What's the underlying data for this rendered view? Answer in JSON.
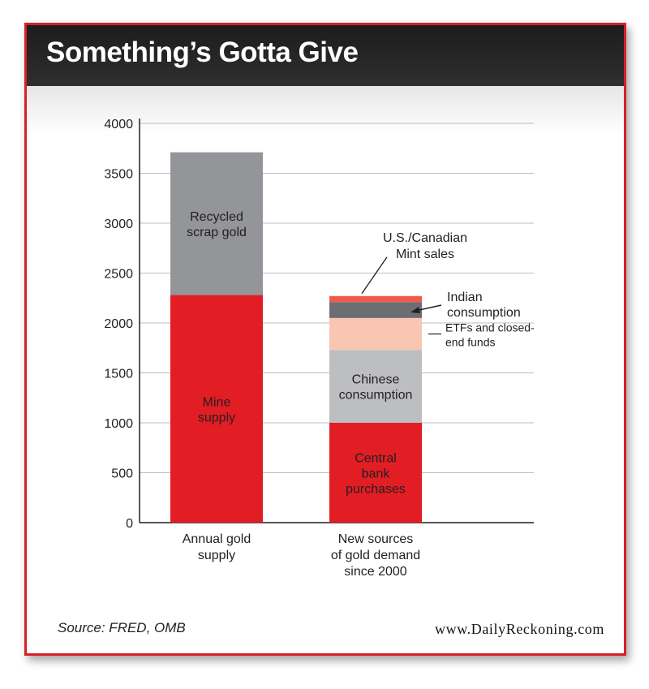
{
  "header": {
    "title": "Something’s Gotta Give"
  },
  "footer": {
    "source": "Source: FRED, OMB",
    "site": "www.DailyReckoning.com"
  },
  "colors": {
    "frame": "#d62027",
    "mine": "#e21d24",
    "recycled": "#939598",
    "central": "#e21d24",
    "chinese": "#bcbec0",
    "etf": "#f9c6b4",
    "indian": "#6d6e71",
    "mint": "#f15a4a"
  },
  "chart_data": {
    "type": "bar",
    "stacked": true,
    "title": "Something’s Gotta Give",
    "ylim": [
      0,
      4000
    ],
    "yticks": [
      0,
      500,
      1000,
      1500,
      2000,
      2500,
      3000,
      3500,
      4000
    ],
    "grid": true,
    "categories": [
      {
        "lines": [
          "Annual gold",
          "supply"
        ]
      },
      {
        "lines": [
          "New sources",
          "of gold demand",
          "since 2000"
        ]
      }
    ],
    "bars": [
      {
        "segments": [
          {
            "name": "Mine supply",
            "value": 2280,
            "color_key": "mine",
            "label_lines": [
              "Mine",
              "supply"
            ],
            "label_style": "inside-dark"
          },
          {
            "name": "Recycled scrap gold",
            "value": 1430,
            "color_key": "recycled",
            "label_lines": [
              "Recycled",
              "scrap gold"
            ],
            "label_style": "inside-dark"
          }
        ]
      },
      {
        "segments": [
          {
            "name": "Central bank purchases",
            "value": 1000,
            "color_key": "central",
            "label_lines": [
              "Central",
              "bank",
              "purchases"
            ],
            "label_style": "inside-dark"
          },
          {
            "name": "Chinese consumption",
            "value": 730,
            "color_key": "chinese",
            "label_lines": [
              "Chinese",
              "consumption"
            ],
            "label_style": "inside-dark"
          },
          {
            "name": "ETFs and closed-end funds",
            "value": 320,
            "color_key": "etf",
            "label_lines": [
              "ETFs and closed-",
              "end funds"
            ],
            "label_style": "callout-small"
          },
          {
            "name": "Indian consumption",
            "value": 160,
            "color_key": "indian",
            "label_lines": [
              "Indian",
              "consumption"
            ],
            "label_style": "callout"
          },
          {
            "name": "U.S./Canadian Mint sales",
            "value": 60,
            "color_key": "mint",
            "label_lines": [
              "U.S./Canadian",
              "Mint sales"
            ],
            "label_style": "callout-above"
          }
        ]
      }
    ]
  }
}
